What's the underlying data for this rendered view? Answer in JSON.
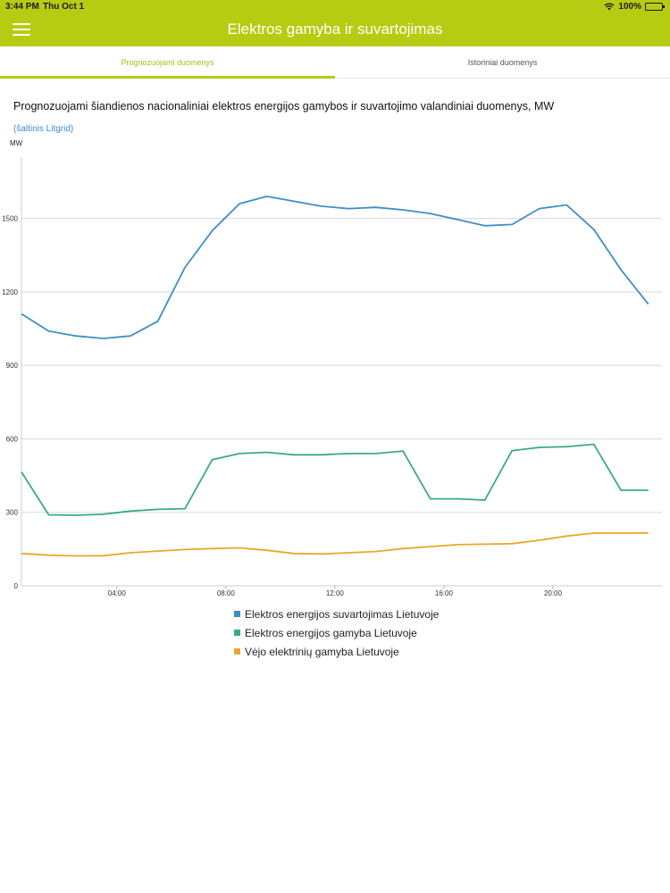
{
  "status_bar": {
    "time": "3:44 PM",
    "date": "Thu Oct 1",
    "battery": "100%"
  },
  "header": {
    "title": "Elektros gamyba ir suvartojimas"
  },
  "tabs": [
    {
      "label": "Prognozuojami duomenys",
      "active": true
    },
    {
      "label": "Istoriniai duomenys",
      "active": false
    }
  ],
  "content": {
    "source_link": "(šaltinis Litgrid)"
  },
  "chart_data": {
    "type": "line",
    "title": "Prognozuojami šiandienos nacionaliniai elektros energijos gamybos ir suvartojimo valandiniai duomenys, MW",
    "ylabel": "MW",
    "ylim": [
      0,
      1750
    ],
    "yticks": [
      0,
      300,
      600,
      900,
      1200,
      1500
    ],
    "xlim": [
      0.5,
      24
    ],
    "xticks": [
      {
        "x": 4,
        "label": "04:00"
      },
      {
        "x": 8,
        "label": "08:00"
      },
      {
        "x": 12,
        "label": "12:00"
      },
      {
        "x": 16,
        "label": "16:00"
      },
      {
        "x": 20,
        "label": "20:00"
      }
    ],
    "grid": true,
    "legend_position": "bottom",
    "series": [
      {
        "name": "Elektros energijos suvartojimas Lietuvoje",
        "color": "#3d8fc4",
        "x": [
          0.5,
          1.5,
          2.5,
          3.5,
          4.5,
          5.5,
          6.5,
          7.5,
          8.5,
          9.5,
          10.5,
          11.5,
          12.5,
          13.5,
          14.5,
          15.5,
          16.5,
          17.5,
          18.5,
          19.5,
          20.5,
          21.5,
          22.5,
          23.5
        ],
        "values": [
          1110,
          1040,
          1020,
          1010,
          1020,
          1080,
          1300,
          1450,
          1560,
          1590,
          1570,
          1550,
          1540,
          1545,
          1535,
          1520,
          1495,
          1470,
          1475,
          1540,
          1555,
          1455,
          1290,
          1150
        ]
      },
      {
        "name": "Elektros energijos gamyba Lietuvoje",
        "color": "#3aab85",
        "x": [
          0.5,
          1.5,
          2.5,
          3.5,
          4.5,
          5.5,
          6.5,
          7.5,
          8.5,
          9.5,
          10.5,
          11.5,
          12.5,
          13.5,
          14.5,
          15.5,
          16.5,
          17.5,
          18.5,
          19.5,
          20.5,
          21.5,
          22.5,
          23.5
        ],
        "values": [
          465,
          290,
          288,
          292,
          305,
          312,
          315,
          515,
          540,
          545,
          535,
          535,
          540,
          540,
          550,
          355,
          355,
          350,
          552,
          565,
          568,
          578,
          390,
          390
        ]
      },
      {
        "name": "Vėjo elektrinių gamyba Lietuvoje",
        "color": "#e8a82a",
        "x": [
          0.5,
          1.5,
          2.5,
          3.5,
          4.5,
          5.5,
          6.5,
          7.5,
          8.5,
          9.5,
          10.5,
          11.5,
          12.5,
          13.5,
          14.5,
          15.5,
          16.5,
          17.5,
          18.5,
          19.5,
          20.5,
          21.5,
          22.5,
          23.5
        ],
        "values": [
          132,
          125,
          122,
          123,
          135,
          142,
          148,
          152,
          155,
          145,
          132,
          130,
          135,
          140,
          152,
          160,
          168,
          170,
          172,
          186,
          203,
          215,
          215,
          216
        ]
      }
    ]
  }
}
